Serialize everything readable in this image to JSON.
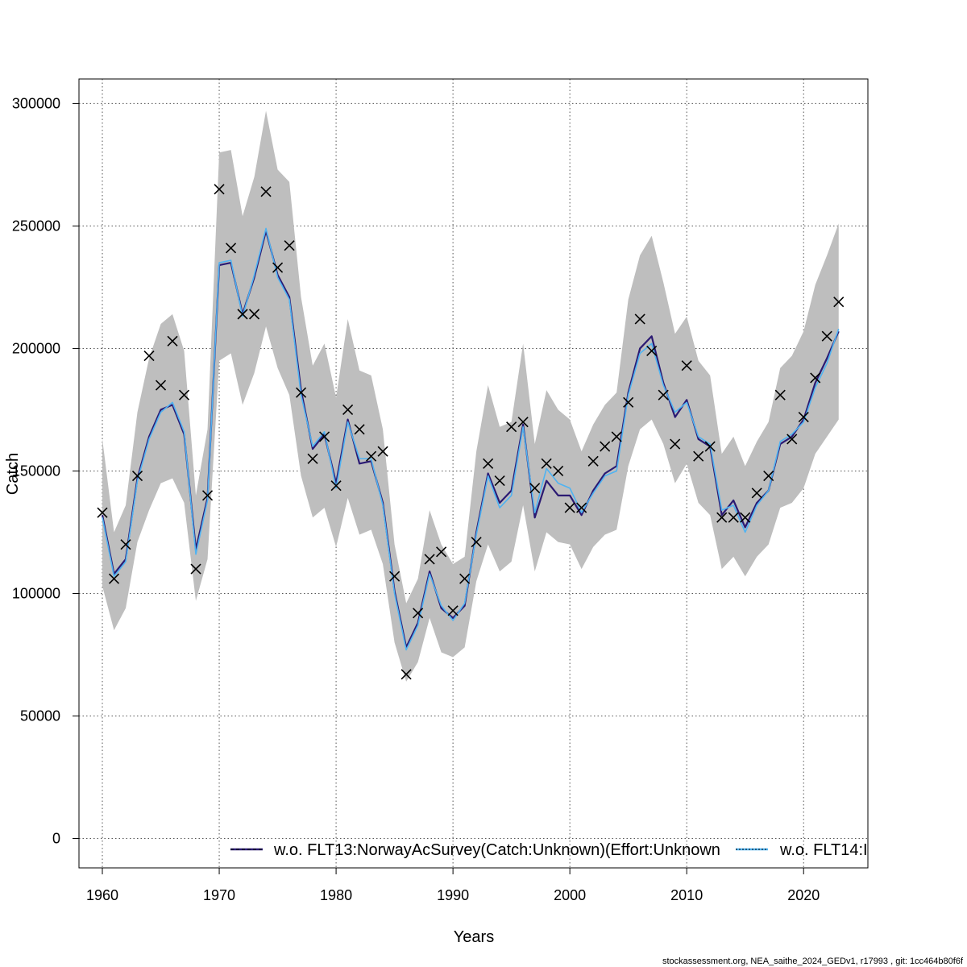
{
  "chart_data": {
    "type": "line",
    "xlabel": "Years",
    "ylabel": "Catch",
    "xlim": [
      1958,
      2025.5
    ],
    "ylim": [
      -12000,
      310000
    ],
    "x_ticks": [
      1960,
      1970,
      1980,
      1990,
      2000,
      2010,
      2020
    ],
    "y_ticks": [
      0,
      50000,
      100000,
      150000,
      200000,
      250000,
      300000
    ],
    "grid": true,
    "years": [
      1960,
      1961,
      1962,
      1963,
      1964,
      1965,
      1966,
      1967,
      1968,
      1969,
      1970,
      1971,
      1972,
      1973,
      1974,
      1975,
      1976,
      1977,
      1978,
      1979,
      1980,
      1981,
      1982,
      1983,
      1984,
      1985,
      1986,
      1987,
      1988,
      1989,
      1990,
      1991,
      1992,
      1993,
      1994,
      1995,
      1996,
      1997,
      1998,
      1999,
      2000,
      2001,
      2002,
      2003,
      2004,
      2005,
      2006,
      2007,
      2008,
      2009,
      2010,
      2011,
      2012,
      2013,
      2014,
      2015,
      2016,
      2017,
      2018,
      2019,
      2020,
      2021,
      2022,
      2023
    ],
    "observed": [
      133000,
      106000,
      120000,
      148000,
      197000,
      185000,
      203000,
      181000,
      110000,
      140000,
      265000,
      241000,
      214000,
      214000,
      264000,
      233000,
      242000,
      182000,
      155000,
      164000,
      144000,
      175000,
      167000,
      156000,
      158000,
      107000,
      67000,
      92000,
      114000,
      117000,
      93000,
      106000,
      121000,
      153000,
      146000,
      168000,
      170000,
      143000,
      153000,
      150000,
      135000,
      135000,
      154000,
      160000,
      164000,
      178000,
      212000,
      199000,
      181000,
      161000,
      193000,
      156000,
      160000,
      131000,
      131000,
      131000,
      141000,
      148000,
      181000,
      163000,
      172000,
      188000,
      205000,
      219000
    ],
    "upper_band": [
      163000,
      125000,
      136000,
      174000,
      196000,
      210000,
      214000,
      199000,
      140000,
      167000,
      280000,
      281000,
      254000,
      270000,
      297000,
      273000,
      268000,
      221000,
      193000,
      202000,
      180000,
      212000,
      191000,
      189000,
      167000,
      120000,
      96000,
      106000,
      134000,
      120000,
      112000,
      115000,
      158000,
      185000,
      168000,
      170000,
      202000,
      161000,
      183000,
      175000,
      171000,
      158000,
      169000,
      177000,
      182000,
      220000,
      238000,
      246000,
      227000,
      206000,
      213000,
      195000,
      189000,
      157000,
      164000,
      152000,
      162000,
      170000,
      192000,
      197000,
      207000,
      226000,
      238000,
      251000
    ],
    "lower_band": [
      103000,
      85000,
      94000,
      121000,
      134000,
      145000,
      147000,
      137000,
      97000,
      114000,
      195000,
      198000,
      177000,
      190000,
      209000,
      192000,
      181000,
      148000,
      131000,
      135000,
      119000,
      139000,
      124000,
      126000,
      112000,
      80000,
      64000,
      72000,
      90000,
      76000,
      74000,
      78000,
      105000,
      120000,
      109000,
      113000,
      136000,
      109000,
      125000,
      121000,
      120000,
      110000,
      119000,
      124000,
      126000,
      152000,
      167000,
      171000,
      161000,
      145000,
      153000,
      137000,
      132000,
      110000,
      115000,
      107000,
      115000,
      120000,
      135000,
      137000,
      143000,
      157000,
      164000,
      171000
    ],
    "series": [
      {
        "name": "w.o. FLT13:NorwayAcSurvey(Catch:Unknown)(Effort:Unknown",
        "color": "#2b1a73",
        "values": [
          132000,
          108000,
          114000,
          147000,
          164000,
          175000,
          177000,
          165000,
          118000,
          139000,
          234000,
          235000,
          214000,
          229000,
          248000,
          230000,
          221000,
          183000,
          159000,
          165000,
          145000,
          171000,
          153000,
          154000,
          137000,
          101000,
          78000,
          88000,
          109000,
          94000,
          90000,
          95000,
          125000,
          149000,
          137000,
          142000,
          169000,
          131000,
          146000,
          140000,
          140000,
          132000,
          142000,
          149000,
          152000,
          182000,
          200000,
          205000,
          186000,
          172000,
          179000,
          163000,
          160000,
          132000,
          138000,
          127000,
          137000,
          142000,
          161000,
          164000,
          171000,
          186000,
          196000,
          207000
        ]
      },
      {
        "name": "w.o. FLT14:I",
        "color": "#4fb3f2",
        "values": [
          131000,
          107000,
          113000,
          146000,
          163000,
          174000,
          178000,
          166000,
          116000,
          138000,
          235000,
          236000,
          213000,
          230000,
          249000,
          229000,
          220000,
          181000,
          160000,
          166000,
          143000,
          170000,
          155000,
          155000,
          136000,
          100000,
          77000,
          87000,
          108000,
          95000,
          89000,
          96000,
          124000,
          148000,
          135000,
          140000,
          168000,
          133000,
          151000,
          145000,
          143000,
          133000,
          141000,
          148000,
          150000,
          181000,
          198000,
          202000,
          185000,
          174000,
          178000,
          164000,
          161000,
          134000,
          136000,
          125000,
          136000,
          142000,
          162000,
          165000,
          170000,
          184000,
          194000,
          208000
        ]
      }
    ]
  },
  "footer_text": "stockassessment.org, NEA_saithe_2024_GEDv1, r17993 , git: 1cc464b80f6f"
}
